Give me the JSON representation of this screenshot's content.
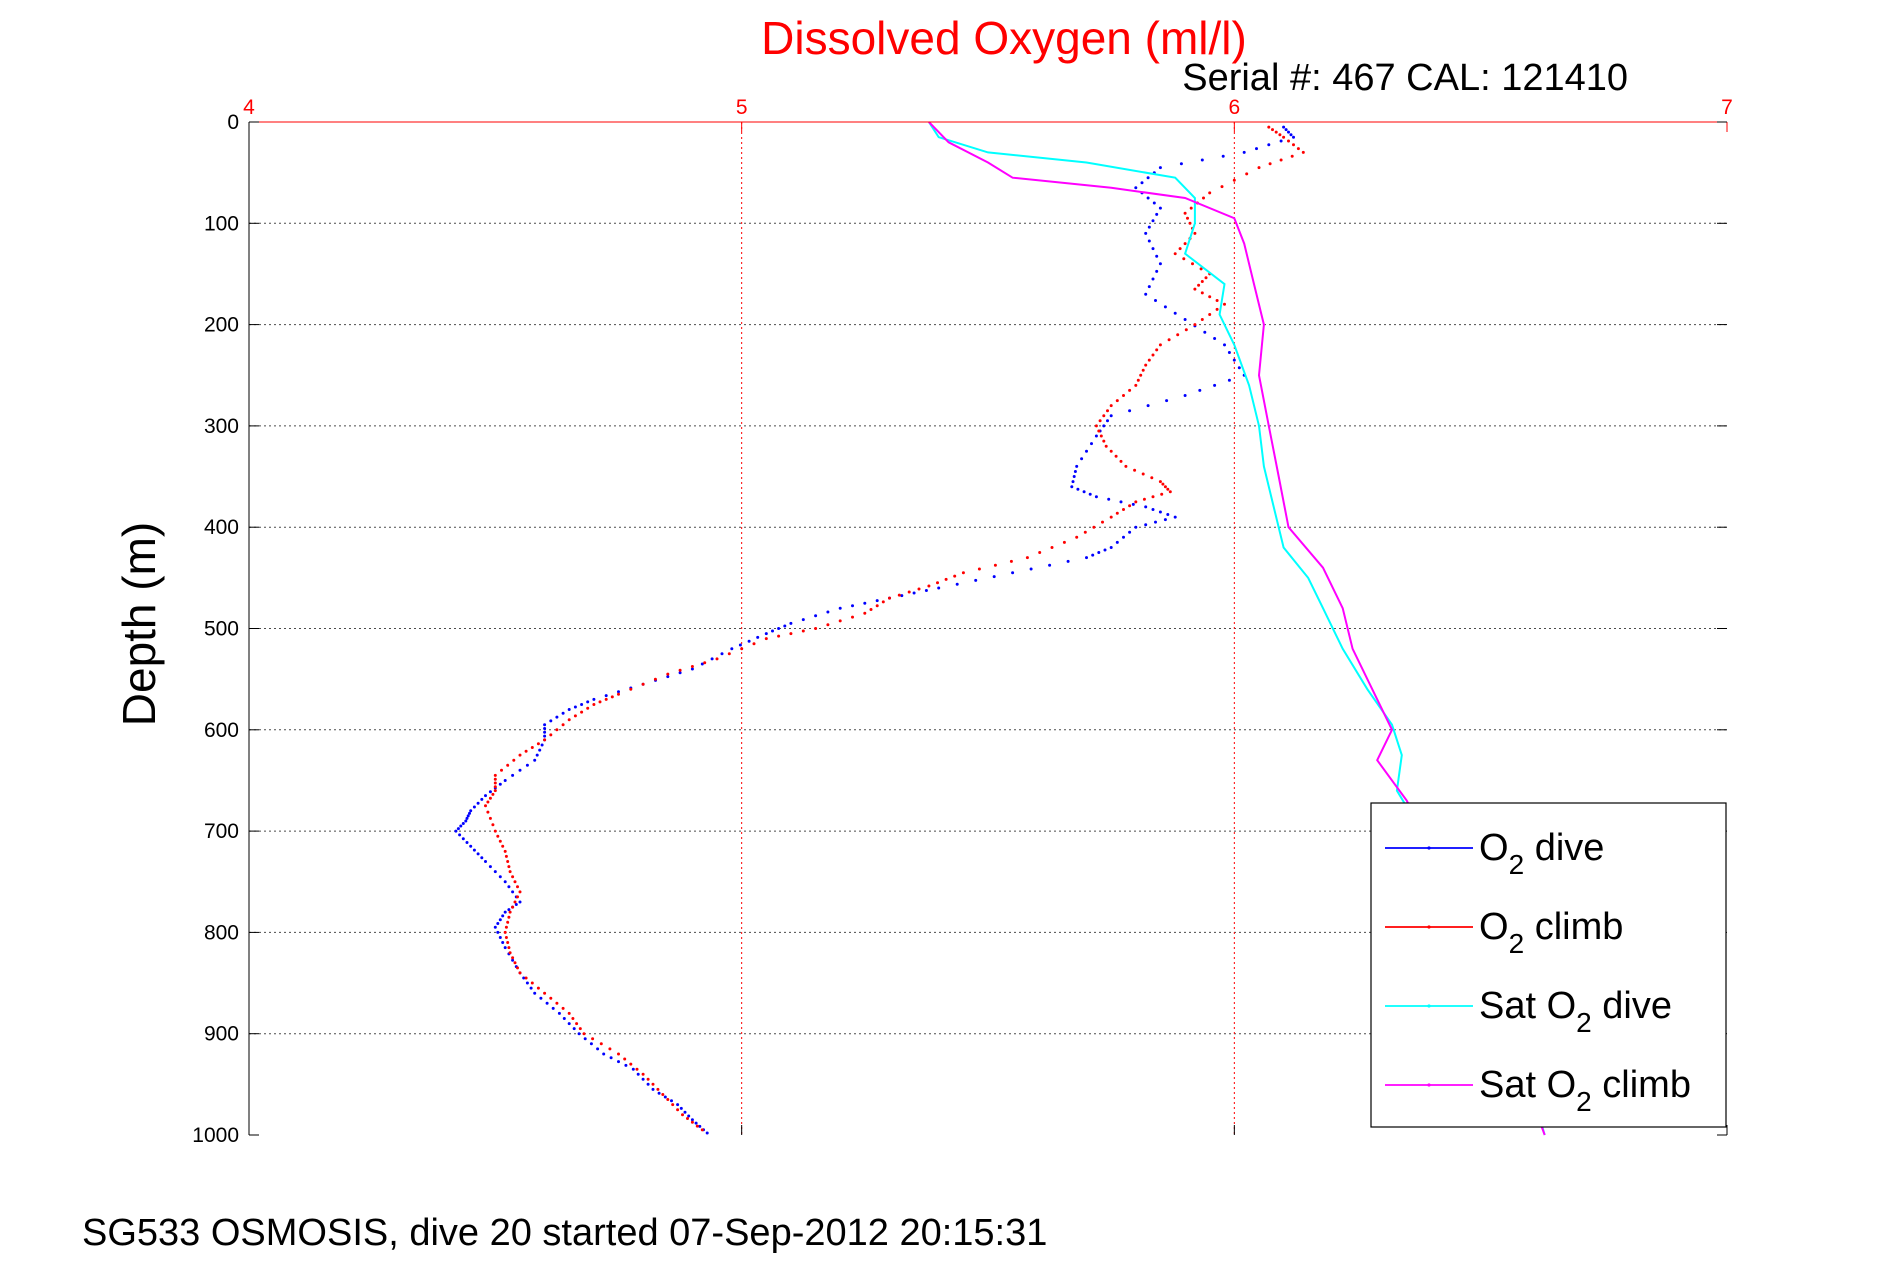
{
  "chart_data": {
    "type": "line",
    "title": "Dissolved Oxygen (ml/l)",
    "subtitle": "Serial #: 467  CAL: 121410",
    "ylabel": "Depth (m)",
    "xlabel": "",
    "footer": "SG533 OSMOSIS, dive 20 started 07-Sep-2012 20:15:31",
    "xlim": [
      4,
      7
    ],
    "ylim": [
      0,
      1000
    ],
    "y_reversed": true,
    "x_axis_position": "top",
    "xticks": [
      "4",
      "5",
      "6",
      "7"
    ],
    "yticks": [
      "0",
      "100",
      "200",
      "300",
      "400",
      "500",
      "600",
      "700",
      "800",
      "900",
      "1000"
    ],
    "grid": true,
    "legend_position": "bottom-right",
    "colors": {
      "title": "#ff0000",
      "x_axis": "#ff0000",
      "o2_dive": "#0000ff",
      "o2_climb": "#ff0000",
      "sat_dive": "#00ffff",
      "sat_climb": "#ff00ff"
    },
    "series": [
      {
        "id": "o2_dive",
        "name": "O2 dive",
        "label_main": "O",
        "label_sub": "2",
        "label_rest": " dive",
        "style": "dots",
        "points": [
          [
            6.1,
            5
          ],
          [
            6.12,
            15
          ],
          [
            6.02,
            30
          ],
          [
            5.85,
            45
          ],
          [
            5.8,
            65
          ],
          [
            5.85,
            85
          ],
          [
            5.82,
            110
          ],
          [
            5.85,
            140
          ],
          [
            5.82,
            170
          ],
          [
            5.9,
            195
          ],
          [
            5.98,
            220
          ],
          [
            6.02,
            250
          ],
          [
            5.9,
            270
          ],
          [
            5.75,
            290
          ],
          [
            5.72,
            310
          ],
          [
            5.68,
            340
          ],
          [
            5.67,
            360
          ],
          [
            5.72,
            370
          ],
          [
            5.82,
            380
          ],
          [
            5.88,
            390
          ],
          [
            5.8,
            400
          ],
          [
            5.75,
            420
          ],
          [
            5.7,
            430
          ],
          [
            5.55,
            445
          ],
          [
            5.4,
            460
          ],
          [
            5.3,
            470
          ],
          [
            5.2,
            480
          ],
          [
            5.1,
            495
          ],
          [
            5.05,
            505
          ],
          [
            4.98,
            520
          ],
          [
            4.9,
            540
          ],
          [
            4.8,
            555
          ],
          [
            4.7,
            570
          ],
          [
            4.65,
            580
          ],
          [
            4.6,
            595
          ],
          [
            4.6,
            610
          ],
          [
            4.58,
            630
          ],
          [
            4.52,
            650
          ],
          [
            4.48,
            665
          ],
          [
            4.45,
            680
          ],
          [
            4.44,
            690
          ],
          [
            4.42,
            700
          ],
          [
            4.45,
            715
          ],
          [
            4.48,
            730
          ],
          [
            4.52,
            750
          ],
          [
            4.55,
            770
          ],
          [
            4.52,
            780
          ],
          [
            4.5,
            795
          ],
          [
            4.52,
            815
          ],
          [
            4.55,
            840
          ],
          [
            4.58,
            860
          ],
          [
            4.63,
            880
          ],
          [
            4.67,
            900
          ],
          [
            4.72,
            920
          ],
          [
            4.78,
            935
          ],
          [
            4.82,
            955
          ],
          [
            4.87,
            970
          ],
          [
            4.9,
            985
          ],
          [
            4.93,
            998
          ]
        ]
      },
      {
        "id": "o2_climb",
        "name": "O2 climb",
        "label_main": "O",
        "label_sub": "2",
        "label_rest": " climb",
        "style": "dots",
        "points": [
          [
            6.07,
            5
          ],
          [
            6.1,
            15
          ],
          [
            6.14,
            30
          ],
          [
            6.05,
            45
          ],
          [
            5.95,
            70
          ],
          [
            5.9,
            90
          ],
          [
            5.92,
            110
          ],
          [
            5.88,
            130
          ],
          [
            5.95,
            150
          ],
          [
            5.92,
            165
          ],
          [
            5.98,
            180
          ],
          [
            5.92,
            200
          ],
          [
            5.85,
            220
          ],
          [
            5.82,
            240
          ],
          [
            5.8,
            260
          ],
          [
            5.75,
            280
          ],
          [
            5.72,
            300
          ],
          [
            5.74,
            320
          ],
          [
            5.78,
            340
          ],
          [
            5.85,
            355
          ],
          [
            5.87,
            365
          ],
          [
            5.8,
            375
          ],
          [
            5.75,
            390
          ],
          [
            5.68,
            410
          ],
          [
            5.58,
            430
          ],
          [
            5.45,
            445
          ],
          [
            5.38,
            458
          ],
          [
            5.3,
            470
          ],
          [
            5.25,
            485
          ],
          [
            5.15,
            500
          ],
          [
            5.05,
            510
          ],
          [
            4.95,
            530
          ],
          [
            4.85,
            545
          ],
          [
            4.75,
            565
          ],
          [
            4.7,
            575
          ],
          [
            4.65,
            590
          ],
          [
            4.6,
            610
          ],
          [
            4.55,
            625
          ],
          [
            4.5,
            645
          ],
          [
            4.5,
            660
          ],
          [
            4.48,
            675
          ],
          [
            4.5,
            700
          ],
          [
            4.52,
            720
          ],
          [
            4.53,
            740
          ],
          [
            4.55,
            760
          ],
          [
            4.53,
            780
          ],
          [
            4.52,
            800
          ],
          [
            4.53,
            820
          ],
          [
            4.55,
            840
          ],
          [
            4.6,
            860
          ],
          [
            4.65,
            880
          ],
          [
            4.68,
            900
          ],
          [
            4.75,
            920
          ],
          [
            4.8,
            940
          ],
          [
            4.84,
            960
          ],
          [
            4.88,
            980
          ],
          [
            4.92,
            995
          ]
        ]
      },
      {
        "id": "sat_dive",
        "name": "Sat O2 dive",
        "label_main": "Sat O",
        "label_sub": "2",
        "label_rest": " dive",
        "style": "line",
        "points": [
          [
            5.38,
            0
          ],
          [
            5.4,
            15
          ],
          [
            5.5,
            30
          ],
          [
            5.7,
            40
          ],
          [
            5.88,
            55
          ],
          [
            5.92,
            75
          ],
          [
            5.92,
            100
          ],
          [
            5.9,
            130
          ],
          [
            5.98,
            160
          ],
          [
            5.97,
            190
          ],
          [
            6.0,
            220
          ],
          [
            6.03,
            260
          ],
          [
            6.05,
            300
          ],
          [
            6.06,
            340
          ],
          [
            6.08,
            380
          ],
          [
            6.1,
            420
          ],
          [
            6.15,
            450
          ],
          [
            6.18,
            480
          ],
          [
            6.22,
            520
          ],
          [
            6.27,
            560
          ],
          [
            6.32,
            595
          ],
          [
            6.34,
            625
          ],
          [
            6.33,
            660
          ],
          [
            6.38,
            700
          ],
          [
            6.42,
            750
          ],
          [
            6.46,
            800
          ],
          [
            6.52,
            850
          ],
          [
            6.56,
            900
          ],
          [
            6.6,
            950
          ],
          [
            6.63,
            1000
          ]
        ]
      },
      {
        "id": "sat_climb",
        "name": "Sat O2 climb",
        "label_main": "Sat O",
        "label_sub": "2",
        "label_rest": " climb",
        "style": "line",
        "points": [
          [
            5.38,
            0
          ],
          [
            5.42,
            20
          ],
          [
            5.5,
            40
          ],
          [
            5.55,
            55
          ],
          [
            5.75,
            65
          ],
          [
            5.9,
            75
          ],
          [
            6.0,
            95
          ],
          [
            6.02,
            120
          ],
          [
            6.04,
            160
          ],
          [
            6.06,
            200
          ],
          [
            6.05,
            250
          ],
          [
            6.07,
            300
          ],
          [
            6.09,
            350
          ],
          [
            6.11,
            400
          ],
          [
            6.18,
            440
          ],
          [
            6.22,
            480
          ],
          [
            6.24,
            520
          ],
          [
            6.28,
            560
          ],
          [
            6.32,
            600
          ],
          [
            6.29,
            630
          ],
          [
            6.35,
            670
          ],
          [
            6.4,
            720
          ],
          [
            6.44,
            770
          ],
          [
            6.48,
            820
          ],
          [
            6.52,
            870
          ],
          [
            6.56,
            920
          ],
          [
            6.6,
            960
          ],
          [
            6.63,
            1000
          ]
        ]
      }
    ]
  }
}
